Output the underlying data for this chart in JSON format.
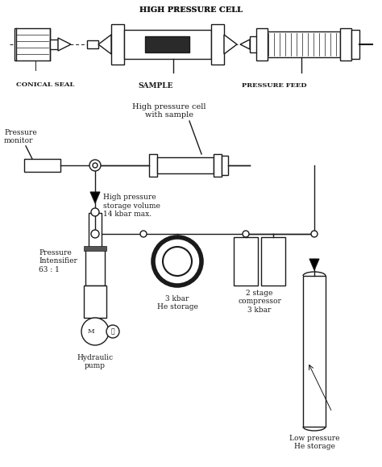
{
  "bg_color": "#ffffff",
  "lc": "#1a1a1a",
  "top_label": "HIGH PRESSURE CELL",
  "label_conical": "CONICAL SEAL",
  "label_sample": "SAMPLE",
  "label_pressure_feed": "PRESSURE FEED",
  "lbl_pm": "Pressure\nmonitor",
  "lbl_hpc": "High pressure cell\nwith sample",
  "lbl_hps": "High pressure\nstorage volume\n14 kbar max.",
  "lbl_pi": "Pressure\nIntensifier\n63 : 1",
  "lbl_he3": "3 kbar\nHe storage",
  "lbl_comp": "2 stage\ncompressor\n3 kbar",
  "lbl_pump": "Hydraulic\npump",
  "lbl_lp": "Low pressure\nHe storage"
}
